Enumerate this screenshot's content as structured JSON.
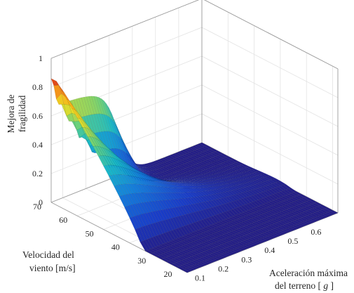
{
  "chart_data": {
    "type": "surface3d",
    "colormap": "parula-like",
    "x_axis": {
      "label": "Aceleración máxima",
      "label_line2_prefix": "del terreno [ ",
      "label_line2_var": "g",
      "label_line2_suffix": " ]",
      "range": [
        0.05,
        0.7
      ],
      "ticks": [
        0.1,
        0.2,
        0.3,
        0.4,
        0.5,
        0.6
      ],
      "tick_labels": [
        "0.1",
        "0.2",
        "0.3",
        "0.4",
        "0.5",
        "0.6"
      ]
    },
    "y_axis": {
      "label_line1": "Velocidad del",
      "label_line2": "viento [m/s]",
      "range": [
        18,
        70
      ],
      "ticks": [
        20,
        30,
        40,
        50,
        60,
        70
      ],
      "tick_labels": [
        "20",
        "30",
        "40",
        "50",
        "60",
        "70"
      ]
    },
    "z_axis": {
      "label_line1": "Mejora de",
      "label_line2": "fragilidad",
      "range": [
        0,
        1
      ],
      "ticks": [
        0,
        0.2,
        0.4,
        0.6,
        0.8,
        1
      ],
      "tick_labels": [
        "0",
        "0.2",
        "0.4",
        "0.6",
        "0.8",
        "1"
      ]
    },
    "peak": {
      "x": 0.06,
      "y": 68,
      "z": 0.86
    },
    "ridge_plateau": {
      "x": 0.33,
      "z": 0.66
    },
    "grid": true,
    "box": true
  }
}
